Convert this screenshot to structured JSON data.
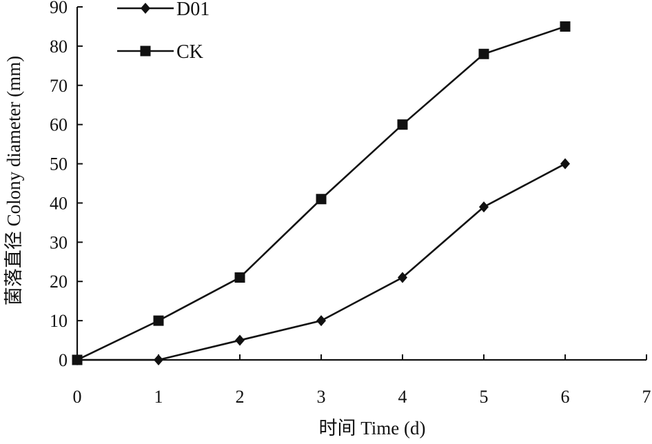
{
  "chart_data": {
    "type": "line",
    "title": "",
    "xlabel": "时间 Time (d)",
    "ylabel": "菌落直径 Colony diameter (mm)",
    "xlim": [
      0,
      7
    ],
    "ylim": [
      0,
      90
    ],
    "xticks": [
      "0",
      "1",
      "2",
      "3",
      "4",
      "5",
      "6",
      "7"
    ],
    "yticks": [
      "0",
      "10",
      "20",
      "30",
      "40",
      "50",
      "60",
      "70",
      "80",
      "90"
    ],
    "grid": false,
    "legend_position": "top-left",
    "x": [
      0,
      1,
      2,
      3,
      4,
      5,
      6
    ],
    "series": [
      {
        "name": "D01",
        "marker": "diamond",
        "color": "#111111",
        "values": [
          0,
          0,
          5,
          10,
          21,
          39,
          50
        ]
      },
      {
        "name": "CK",
        "marker": "square",
        "color": "#111111",
        "values": [
          0,
          10,
          21,
          41,
          60,
          78,
          85
        ]
      }
    ]
  }
}
